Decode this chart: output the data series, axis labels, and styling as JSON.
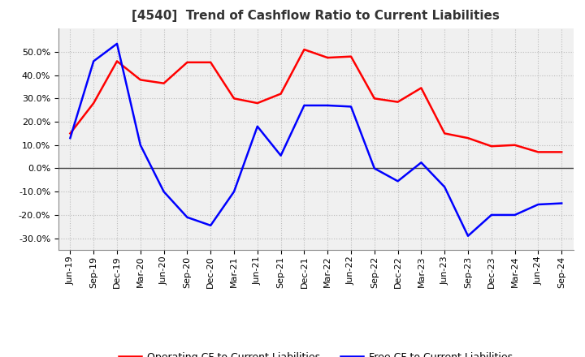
{
  "title": "[4540]  Trend of Cashflow Ratio to Current Liabilities",
  "x_labels": [
    "Jun-19",
    "Sep-19",
    "Dec-19",
    "Mar-20",
    "Jun-20",
    "Sep-20",
    "Dec-20",
    "Mar-21",
    "Jun-21",
    "Sep-21",
    "Dec-21",
    "Mar-22",
    "Jun-22",
    "Sep-22",
    "Dec-22",
    "Mar-23",
    "Jun-23",
    "Sep-23",
    "Dec-23",
    "Mar-24",
    "Jun-24",
    "Sep-24"
  ],
  "operating_cf": [
    15.0,
    28.0,
    46.0,
    38.0,
    36.5,
    45.5,
    45.5,
    30.0,
    28.0,
    32.0,
    51.0,
    47.5,
    48.0,
    30.0,
    28.5,
    34.5,
    15.0,
    13.0,
    9.5,
    10.0,
    7.0,
    7.0
  ],
  "free_cf": [
    13.0,
    46.0,
    53.5,
    10.0,
    -10.0,
    -21.0,
    -24.5,
    -10.0,
    18.0,
    5.5,
    27.0,
    27.0,
    26.5,
    0.0,
    -5.5,
    2.5,
    -8.0,
    -29.0,
    -20.0,
    -20.0,
    -15.5,
    -15.0
  ],
  "ylim": [
    -35.0,
    60.0
  ],
  "yticks": [
    -30.0,
    -20.0,
    -10.0,
    0.0,
    10.0,
    20.0,
    30.0,
    40.0,
    50.0
  ],
  "operating_color": "#ff0000",
  "free_color": "#0000ff",
  "background_color": "#ffffff",
  "plot_bg_color": "#f0f0f0",
  "grid_color": "#bbbbbb",
  "zero_line_color": "#444444",
  "legend_op": "Operating CF to Current Liabilities",
  "legend_free": "Free CF to Current Liabilities",
  "title_fontsize": 11,
  "tick_fontsize": 8,
  "legend_fontsize": 9
}
